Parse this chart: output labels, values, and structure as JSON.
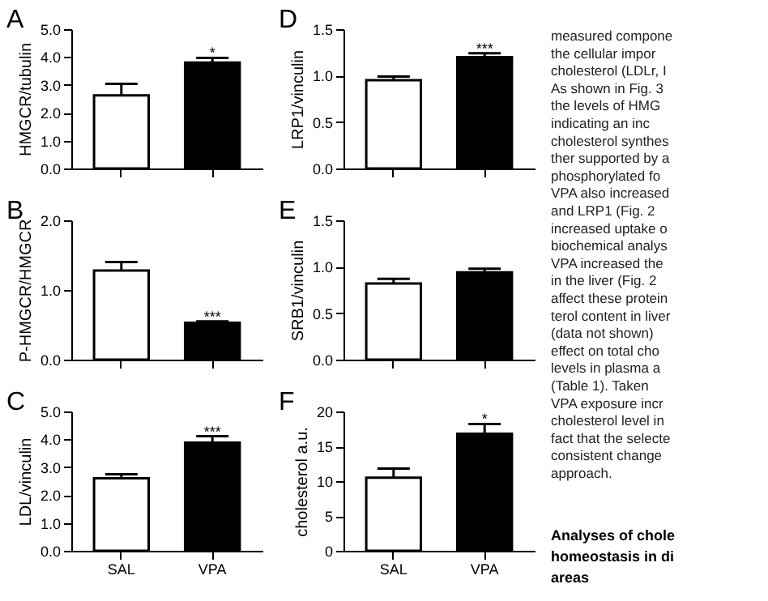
{
  "chart_data": [
    {
      "type": "bar",
      "title": "A",
      "ylabel": "HMGCR/tubulin",
      "categories": [
        "SAL",
        "VPA"
      ],
      "values": [
        2.62,
        3.8
      ],
      "errors": [
        [
          2.62,
          3.04
        ],
        [
          3.8,
          3.97
        ]
      ],
      "colors": [
        "#ffffff",
        "#000000"
      ],
      "ylim": [
        0,
        5
      ],
      "yticks": [
        {
          "value": 0,
          "label": "0.0"
        },
        {
          "value": 1,
          "label": "1.0"
        },
        {
          "value": 2,
          "label": "2.0"
        },
        {
          "value": 3,
          "label": "3.0"
        },
        {
          "value": 4,
          "label": "4.0"
        },
        {
          "value": 5,
          "label": "5.0"
        }
      ],
      "tick_labels": "y",
      "annotations": [
        {
          "text": "*",
          "x": "VPA",
          "y": 3.97
        }
      ]
    },
    {
      "type": "bar",
      "title": "B",
      "ylabel": "P-HMGCR/HMGCR",
      "categories": [
        "SAL",
        "VPA"
      ],
      "values": [
        1.28,
        0.53
      ],
      "errors": [
        [
          1.28,
          1.4
        ],
        [
          0.53,
          0.55
        ]
      ],
      "colors": [
        "#ffffff",
        "#000000"
      ],
      "ylim": [
        0,
        2
      ],
      "yticks": [
        {
          "value": 0,
          "label": "0.0"
        },
        {
          "value": 1,
          "label": "1.0"
        },
        {
          "value": 2,
          "label": "2.0"
        }
      ],
      "tick_labels": "y",
      "annotations": [
        {
          "text": "***",
          "x": "VPA",
          "y": 0.55
        }
      ]
    },
    {
      "type": "bar",
      "title": "C",
      "ylabel": "LDL/vinculin",
      "categories": [
        "SAL",
        "VPA"
      ],
      "values": [
        2.6,
        3.88
      ],
      "errors": [
        [
          2.6,
          2.75
        ],
        [
          3.88,
          4.11
        ]
      ],
      "colors": [
        "#ffffff",
        "#000000"
      ],
      "ylim": [
        0,
        5
      ],
      "yticks": [
        {
          "value": 0,
          "label": "0.0"
        },
        {
          "value": 1,
          "label": "1.0"
        },
        {
          "value": 2,
          "label": "2.0"
        },
        {
          "value": 3,
          "label": "3.0"
        },
        {
          "value": 4,
          "label": "4.0"
        },
        {
          "value": 5,
          "label": "5.0"
        }
      ],
      "annotations": [
        {
          "text": "***",
          "x": "VPA",
          "y": 4.11
        }
      ]
    },
    {
      "type": "bar",
      "title": "D",
      "ylabel": "LRP1/vinculin",
      "categories": [
        "SAL",
        "VPA"
      ],
      "values": [
        0.95,
        1.2
      ],
      "errors": [
        [
          0.95,
          0.99
        ],
        [
          1.2,
          1.24
        ]
      ],
      "colors": [
        "#ffffff",
        "#000000"
      ],
      "ylim": [
        0,
        1.5
      ],
      "yticks": [
        {
          "value": 0,
          "label": "0.0"
        },
        {
          "value": 0.5,
          "label": "0.5"
        },
        {
          "value": 1,
          "label": "1.0"
        },
        {
          "value": 1.5,
          "label": "1.5"
        }
      ],
      "tick_labels": "y",
      "annotations": [
        {
          "text": "***",
          "x": "VPA",
          "y": 1.24
        }
      ]
    },
    {
      "type": "bar",
      "title": "E",
      "ylabel": "SRB1/vinculin",
      "categories": [
        "SAL",
        "VPA"
      ],
      "values": [
        0.82,
        0.94
      ],
      "errors": [
        [
          0.82,
          0.87
        ],
        [
          0.94,
          0.98
        ]
      ],
      "colors": [
        "#ffffff",
        "#000000"
      ],
      "ylim": [
        0,
        1.5
      ],
      "yticks": [
        {
          "value": 0,
          "label": "0.0"
        },
        {
          "value": 0.5,
          "label": "0.5"
        },
        {
          "value": 1,
          "label": "1.0"
        },
        {
          "value": 1.5,
          "label": "1.5"
        }
      ],
      "tick_labels": "y"
    },
    {
      "type": "bar",
      "title": "F",
      "ylabel": "cholesterol a.u.",
      "categories": [
        "SAL",
        "VPA"
      ],
      "values": [
        10.5,
        16.8
      ],
      "errors": [
        [
          10.5,
          11.8
        ],
        [
          16.8,
          18.2
        ]
      ],
      "colors": [
        "#ffffff",
        "#000000"
      ],
      "ylim": [
        0,
        20
      ],
      "yticks": [
        0,
        5,
        10,
        15,
        20
      ],
      "annotations": [
        {
          "text": "*",
          "x": "VPA",
          "y": 18.2
        }
      ]
    },
    {
      "type": "other",
      "title": "Analyses of chole\nhomeostasis in di\nareas",
      "annotations": [
        "measured compone",
        "the cellular impor",
        "cholesterol (LDLr, I",
        "As shown in Fig. 3",
        "the levels of HMG",
        "indicating an inc",
        "cholesterol synthes",
        "ther supported by a",
        "phosphorylated fo",
        "VPA also increased",
        "and LRP1 (Fig. 2",
        "increased uptake o",
        "biochemical analys",
        "VPA increased the",
        "in the liver (Fig. 2",
        "affect these protein",
        "terol content in liver",
        "(data not shown)",
        "effect on total cho",
        "levels in plasma a",
        "(Table 1). Taken",
        "VPA exposure incr",
        "cholesterol level in",
        "fact that the selecte",
        "consistent change",
        "approach."
      ]
    }
  ]
}
